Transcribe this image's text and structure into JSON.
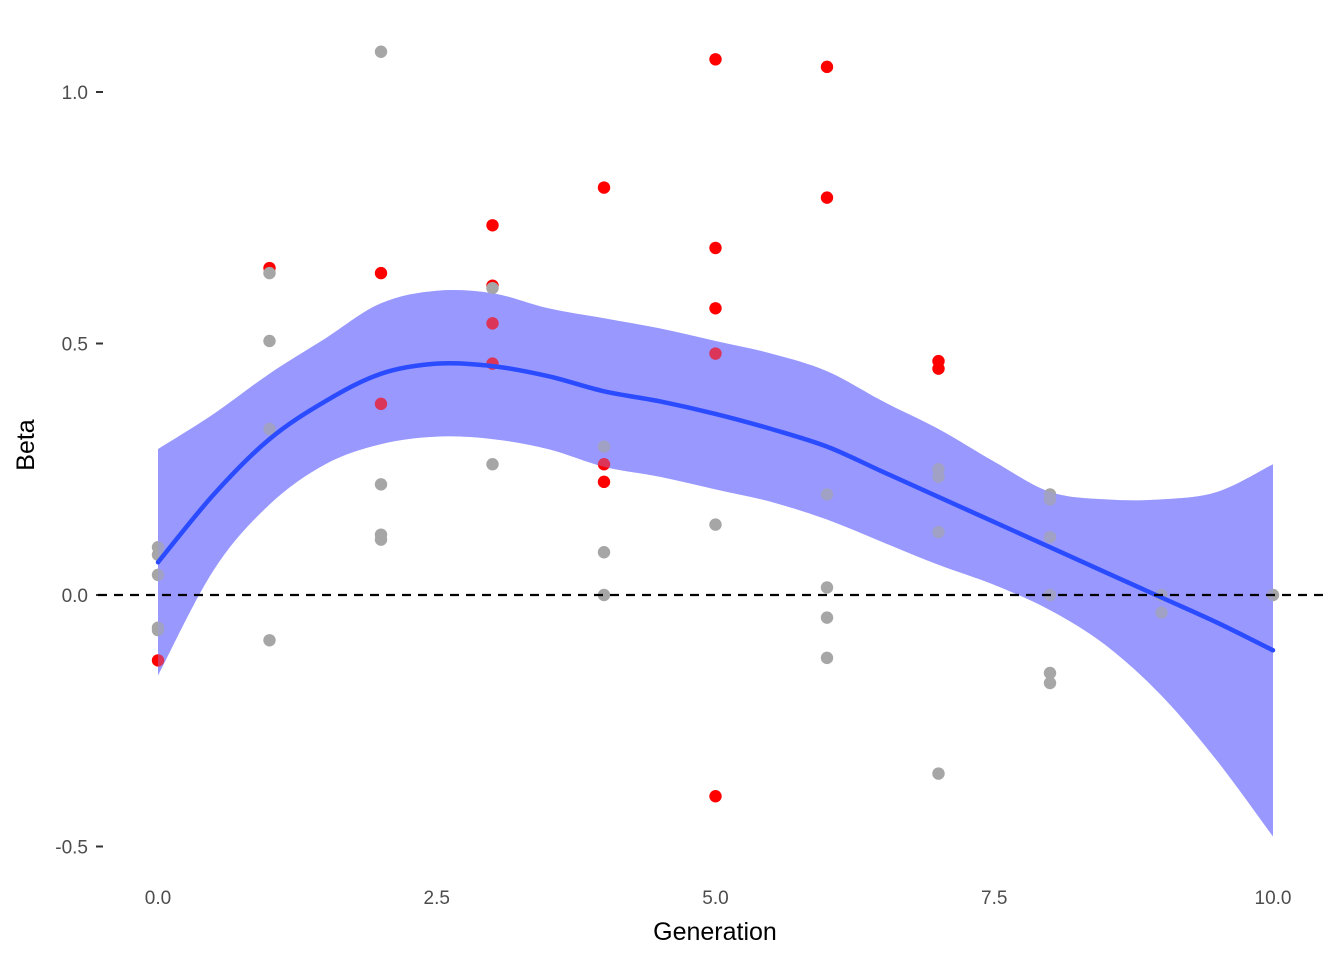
{
  "chart_data": {
    "type": "scatter",
    "title": "",
    "xlabel": "Generation",
    "ylabel": "Beta",
    "xlim": [
      -0.5,
      10.5
    ],
    "ylim": [
      -0.55,
      1.1
    ],
    "x_ticks": [
      0.0,
      2.5,
      5.0,
      7.5,
      10.0
    ],
    "x_tick_labels": [
      "0.0",
      "2.5",
      "5.0",
      "7.5",
      "10.0"
    ],
    "y_ticks": [
      -0.5,
      0.0,
      0.5,
      1.0
    ],
    "y_tick_labels": [
      "-0.5",
      "0.0",
      "0.5",
      "1.0"
    ],
    "grid": false,
    "reference_line": {
      "y": 0,
      "style": "dashed",
      "color": "#000000"
    },
    "colors": {
      "highlight_points": "#ff0000",
      "other_points": "#a6a6a6",
      "smooth_line": "#2a4bff",
      "confidence_band": "#9999ff"
    },
    "series": [
      {
        "style": "highlight",
        "points": [
          [
            0,
            -0.13
          ],
          [
            1,
            0.65
          ],
          [
            2,
            0.64
          ],
          [
            2,
            0.38
          ],
          [
            3,
            0.735
          ],
          [
            3,
            0.615
          ],
          [
            3,
            0.54
          ],
          [
            3,
            0.46
          ],
          [
            4,
            0.81
          ],
          [
            4,
            0.26
          ],
          [
            4,
            0.225
          ],
          [
            5,
            1.065
          ],
          [
            5,
            0.69
          ],
          [
            5,
            0.57
          ],
          [
            5,
            0.48
          ],
          [
            5,
            -0.4
          ],
          [
            6,
            1.05
          ],
          [
            6,
            0.79
          ],
          [
            7,
            0.465
          ],
          [
            7,
            0.45
          ]
        ]
      },
      {
        "style": "other",
        "points": [
          [
            0,
            0.095
          ],
          [
            0,
            0.08
          ],
          [
            0,
            0.04
          ],
          [
            0,
            -0.065
          ],
          [
            0,
            -0.07
          ],
          [
            1,
            0.64
          ],
          [
            1,
            0.505
          ],
          [
            1,
            0.33
          ],
          [
            1,
            -0.09
          ],
          [
            2,
            1.08
          ],
          [
            2,
            0.22
          ],
          [
            2,
            0.12
          ],
          [
            2,
            0.11
          ],
          [
            3,
            0.61
          ],
          [
            3,
            0.26
          ],
          [
            4,
            0.295
          ],
          [
            4,
            0.085
          ],
          [
            4,
            0.0
          ],
          [
            5,
            0.14
          ],
          [
            6,
            0.2
          ],
          [
            6,
            0.015
          ],
          [
            6,
            -0.045
          ],
          [
            6,
            -0.125
          ],
          [
            7,
            0.25
          ],
          [
            7,
            0.235
          ],
          [
            7,
            0.125
          ],
          [
            7,
            -0.355
          ],
          [
            8,
            0.2
          ],
          [
            8,
            0.19
          ],
          [
            8,
            0.115
          ],
          [
            8,
            0.0
          ],
          [
            8,
            -0.155
          ],
          [
            8,
            -0.175
          ],
          [
            9,
            0.0
          ],
          [
            9,
            -0.035
          ],
          [
            10,
            0.0
          ]
        ]
      },
      {
        "style": "smooth",
        "x": [
          0,
          0.5,
          1,
          1.5,
          2,
          2.5,
          3,
          3.5,
          4,
          4.5,
          5,
          5.5,
          6,
          6.5,
          7,
          7.5,
          8,
          8.5,
          9,
          9.5,
          10
        ],
        "y": [
          0.065,
          0.2,
          0.31,
          0.385,
          0.44,
          0.46,
          0.455,
          0.435,
          0.405,
          0.385,
          0.36,
          0.33,
          0.295,
          0.245,
          0.195,
          0.145,
          0.095,
          0.045,
          -0.005,
          -0.055,
          -0.11
        ],
        "lower": [
          -0.16,
          0.05,
          0.18,
          0.26,
          0.3,
          0.315,
          0.31,
          0.29,
          0.255,
          0.235,
          0.21,
          0.185,
          0.15,
          0.105,
          0.06,
          0.02,
          -0.03,
          -0.1,
          -0.2,
          -0.33,
          -0.48
        ],
        "upper": [
          0.29,
          0.36,
          0.44,
          0.51,
          0.58,
          0.605,
          0.6,
          0.57,
          0.55,
          0.53,
          0.505,
          0.48,
          0.445,
          0.385,
          0.33,
          0.265,
          0.205,
          0.19,
          0.19,
          0.205,
          0.26
        ]
      }
    ]
  }
}
